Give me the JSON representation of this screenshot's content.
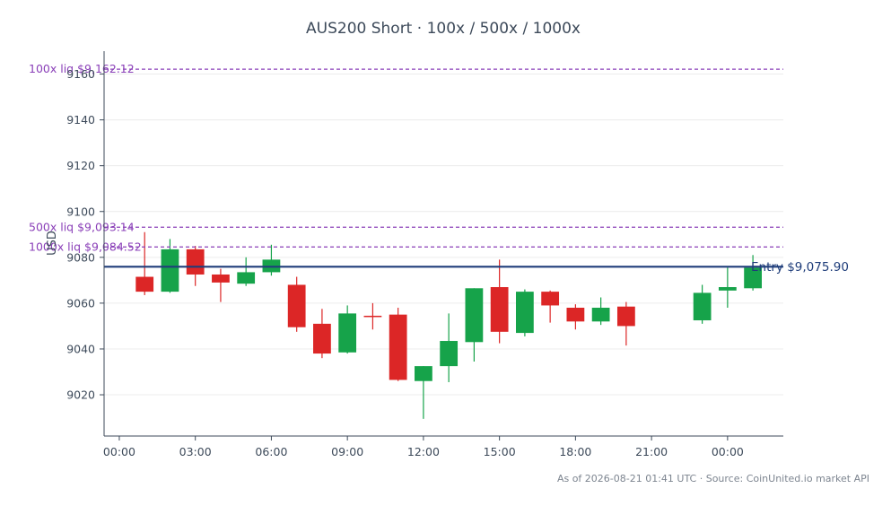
{
  "chart_data": {
    "type": "candlestick",
    "title": "AUS200 Short · 100x / 500x / 1000x",
    "ylabel": "USD",
    "xlabel": "",
    "ylim": [
      9002,
      9170
    ],
    "xlim": [
      -0.6,
      26.2
    ],
    "yticks": [
      9020,
      9040,
      9060,
      9080,
      9100,
      9120,
      9140,
      9160
    ],
    "xticks": [
      {
        "x": 0,
        "label": "00:00"
      },
      {
        "x": 3,
        "label": "03:00"
      },
      {
        "x": 6,
        "label": "06:00"
      },
      {
        "x": 9,
        "label": "09:00"
      },
      {
        "x": 12,
        "label": "12:00"
      },
      {
        "x": 15,
        "label": "15:00"
      },
      {
        "x": 18,
        "label": "18:00"
      },
      {
        "x": 21,
        "label": "21:00"
      },
      {
        "x": 24,
        "label": "00:00"
      }
    ],
    "grid": true,
    "up_color": "#16a34a",
    "down_color": "#dc2626",
    "candles": [
      {
        "x": 1,
        "open": 9071.5,
        "high": 9091,
        "low": 9063.5,
        "close": 9065
      },
      {
        "x": 2,
        "open": 9065,
        "high": 9088,
        "low": 9064.5,
        "close": 9083.5
      },
      {
        "x": 3,
        "open": 9083.5,
        "high": 9085,
        "low": 9067.5,
        "close": 9072.5
      },
      {
        "x": 4,
        "open": 9072.5,
        "high": 9075,
        "low": 9060.5,
        "close": 9069
      },
      {
        "x": 5,
        "open": 9068.5,
        "high": 9080,
        "low": 9067.5,
        "close": 9073.5
      },
      {
        "x": 6,
        "open": 9073.5,
        "high": 9085.5,
        "low": 9072,
        "close": 9079
      },
      {
        "x": 7,
        "open": 9068,
        "high": 9071.5,
        "low": 9047.5,
        "close": 9049.5
      },
      {
        "x": 8,
        "open": 9051,
        "high": 9057.5,
        "low": 9036,
        "close": 9038
      },
      {
        "x": 9,
        "open": 9038.5,
        "high": 9059,
        "low": 9038,
        "close": 9055.5
      },
      {
        "x": 10,
        "open": 9054.5,
        "high": 9060,
        "low": 9048.5,
        "close": 9054
      },
      {
        "x": 11,
        "open": 9055,
        "high": 9058,
        "low": 9026,
        "close": 9026.5
      },
      {
        "x": 12,
        "open": 9026,
        "high": 9032.5,
        "low": 9009.5,
        "close": 9032.5
      },
      {
        "x": 13,
        "open": 9032.5,
        "high": 9055.5,
        "low": 9025.5,
        "close": 9043.5
      },
      {
        "x": 14,
        "open": 9043,
        "high": 9066.5,
        "low": 9034.5,
        "close": 9066.5
      },
      {
        "x": 15,
        "open": 9067,
        "high": 9079,
        "low": 9042.5,
        "close": 9047.5
      },
      {
        "x": 16,
        "open": 9047,
        "high": 9066,
        "low": 9045.5,
        "close": 9065
      },
      {
        "x": 17,
        "open": 9065,
        "high": 9065.5,
        "low": 9051.5,
        "close": 9059
      },
      {
        "x": 18,
        "open": 9058,
        "high": 9059.5,
        "low": 9048.5,
        "close": 9052
      },
      {
        "x": 19,
        "open": 9052,
        "high": 9062.5,
        "low": 9050.5,
        "close": 9058
      },
      {
        "x": 20,
        "open": 9058.5,
        "high": 9060.5,
        "low": 9041.5,
        "close": 9050
      },
      {
        "x": 23,
        "open": 9052.5,
        "high": 9068,
        "low": 9051,
        "close": 9064.5
      },
      {
        "x": 24,
        "open": 9065.5,
        "high": 9075.5,
        "low": 9058,
        "close": 9067
      },
      {
        "x": 25,
        "open": 9066.5,
        "high": 9081,
        "low": 9065.5,
        "close": 9075.5
      }
    ],
    "reference_lines": [
      {
        "name": "liq-100x",
        "value": 9162.12,
        "label": "100x liq $9,162.12",
        "color": "#8a3fb8",
        "style": "dashed"
      },
      {
        "name": "liq-500x",
        "value": 9093.14,
        "label": "500x liq $9,093.14",
        "color": "#8a3fb8",
        "style": "dashed"
      },
      {
        "name": "liq-1000x",
        "value": 9084.52,
        "label": "1000x liq $9,084.52",
        "color": "#8a3fb8",
        "style": "dashed"
      },
      {
        "name": "entry",
        "value": 9075.9,
        "label": "Entry $9,075.90",
        "color": "#1f3d7a",
        "style": "solid"
      }
    ],
    "footer": "As of 2026-08-21 01:41 UTC · Source: CoinUnited.io market API"
  }
}
